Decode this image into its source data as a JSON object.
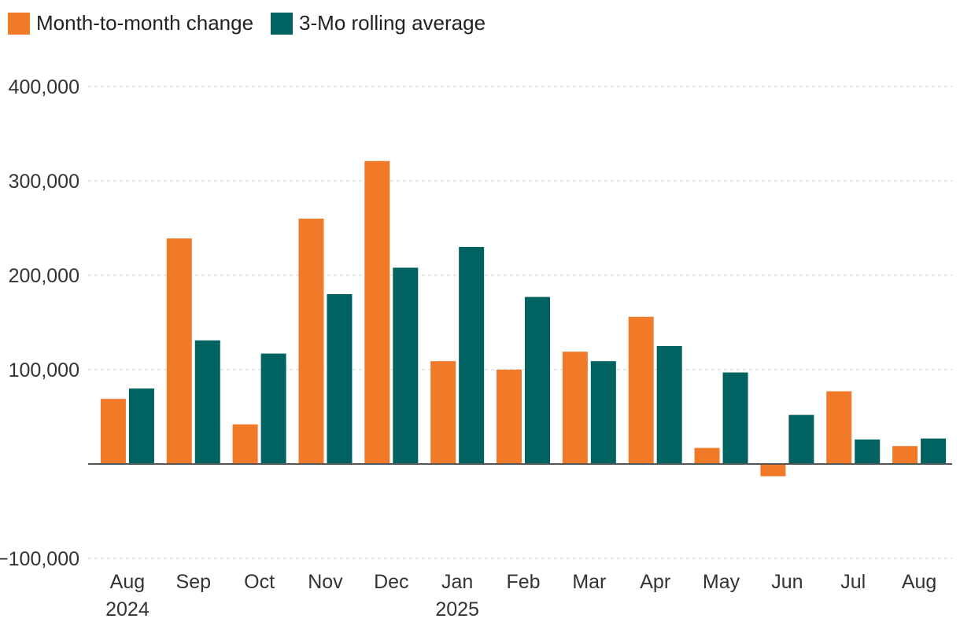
{
  "chart_data": {
    "type": "bar",
    "title": "",
    "xlabel": "",
    "ylabel": "",
    "categories": [
      "Aug",
      "Sep",
      "Oct",
      "Nov",
      "Dec",
      "Jan",
      "Feb",
      "Mar",
      "Apr",
      "May",
      "Jun",
      "Jul",
      "Aug"
    ],
    "category_years": [
      "2024",
      "",
      "",
      "",
      "",
      "2025",
      "",
      "",
      "",
      "",
      "",
      "",
      ""
    ],
    "series": [
      {
        "name": "Month-to-month change",
        "color": "#F07A28",
        "values": [
          69000,
          239000,
          42000,
          260000,
          321000,
          109000,
          100000,
          119000,
          156000,
          17000,
          -13000,
          77000,
          19000
        ]
      },
      {
        "name": "3-Mo rolling average",
        "color": "#006361",
        "values": [
          80000,
          131000,
          117000,
          180000,
          208000,
          230000,
          177000,
          109000,
          125000,
          97000,
          52000,
          26000,
          27000
        ]
      }
    ],
    "ylim": [
      -100000,
      400000
    ],
    "yticks": [
      -100000,
      100000,
      200000,
      300000,
      400000
    ],
    "ytick_labels": [
      "−100,000",
      "100,000",
      "200,000",
      "300,000",
      "400,000"
    ],
    "grid": true,
    "legend_position": "top-left"
  }
}
